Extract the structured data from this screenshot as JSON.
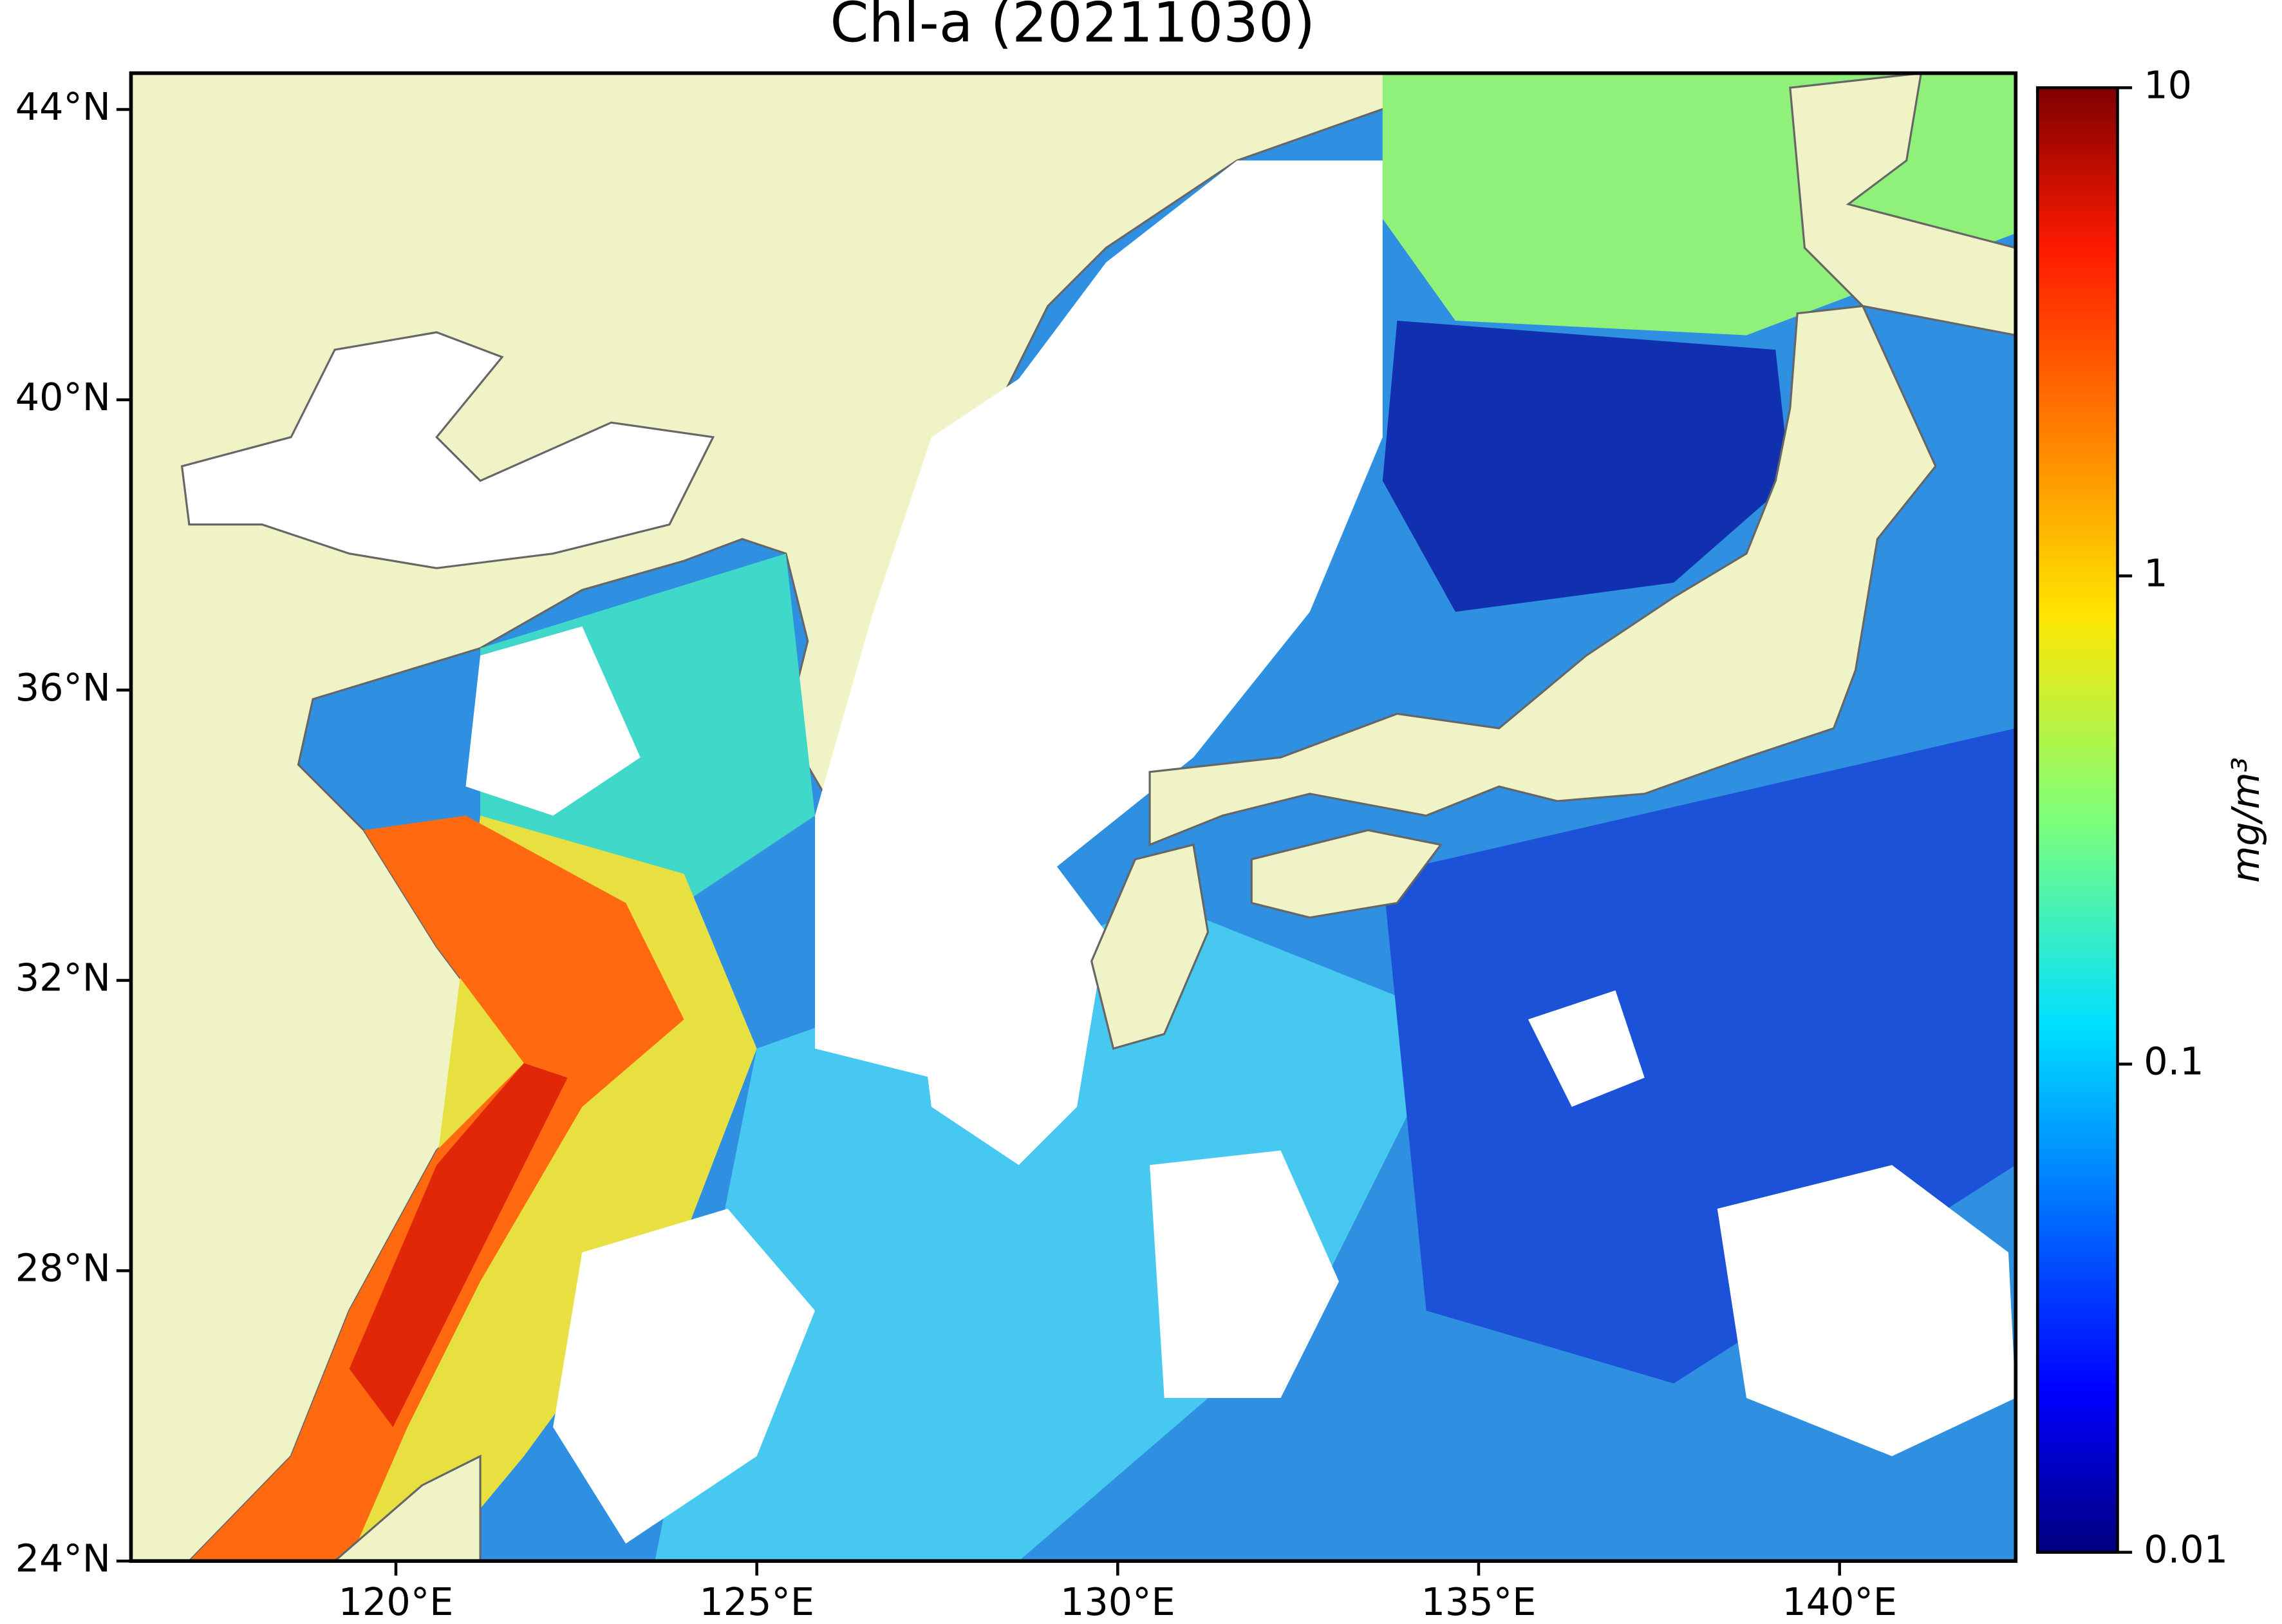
{
  "map": {
    "title": "Chl-a (20211030)",
    "xlim": [
      116.33,
      142.44
    ],
    "ylim": [
      24,
      44.5
    ],
    "xticks": [
      {
        "value": 120,
        "label": "120°E"
      },
      {
        "value": 125,
        "label": "125°E"
      },
      {
        "value": 130,
        "label": "130°E"
      },
      {
        "value": 135,
        "label": "135°E"
      },
      {
        "value": 140,
        "label": "140°E"
      }
    ],
    "yticks": [
      {
        "value": 24,
        "label": "24°N"
      },
      {
        "value": 28,
        "label": "28°N"
      },
      {
        "value": 32,
        "label": "32°N"
      },
      {
        "value": 36,
        "label": "36°N"
      },
      {
        "value": 40,
        "label": "40°N"
      },
      {
        "value": 44,
        "label": "44°N"
      }
    ],
    "colorbar": {
      "label": "mg/m³",
      "scale": "log",
      "lim": [
        0.01,
        10
      ],
      "ticks": [
        0.01,
        0.1,
        1,
        10
      ],
      "colormap": "jet"
    }
  }
}
